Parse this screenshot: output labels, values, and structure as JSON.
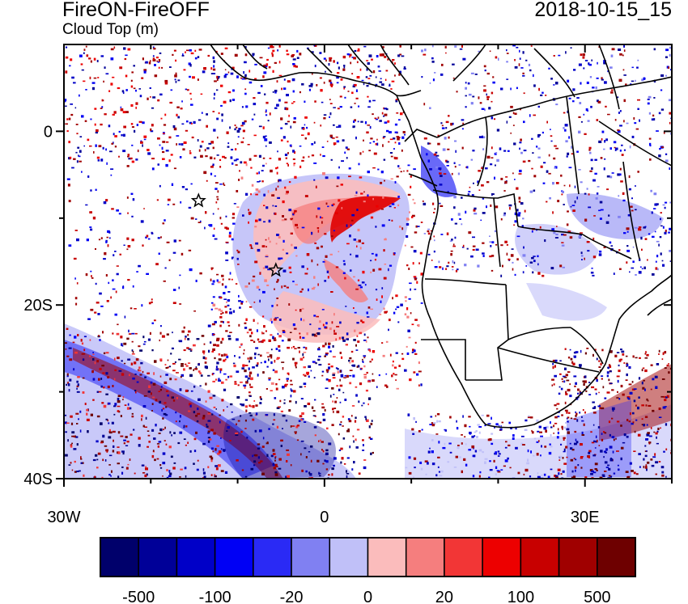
{
  "header": {
    "title": "FireON-FireOFF",
    "subtitle": "Cloud Top (m)",
    "timestamp": "2018-10-15_15"
  },
  "map": {
    "lon_range": [
      -30,
      40
    ],
    "lat_range": [
      -40,
      10
    ],
    "x_ticks": [
      {
        "lon": -30,
        "label": "30W"
      },
      {
        "lon": 0,
        "label": "0"
      },
      {
        "lon": 30,
        "label": "30E"
      }
    ],
    "y_ticks": [
      {
        "lat": 0,
        "label": "0"
      },
      {
        "lat": -20,
        "label": "20S"
      },
      {
        "lat": -40,
        "label": "40S"
      }
    ],
    "markers": [
      {
        "name": "star-marker",
        "lon": -14.5,
        "lat": -8
      },
      {
        "name": "star-marker",
        "lon": -5.6,
        "lat": -16
      }
    ]
  },
  "colorbar": {
    "labels": [
      "-500",
      "-100",
      "-20",
      "0",
      "20",
      "100",
      "500"
    ],
    "colors": [
      "#00006b",
      "#000098",
      "#0000c8",
      "#0000f5",
      "#2a2af5",
      "#8080f2",
      "#c0c0f8",
      "#fbbcbc",
      "#f57e7e",
      "#f23636",
      "#ed0000",
      "#c80000",
      "#a00000",
      "#6e0000"
    ]
  },
  "colors": {
    "land_outline": "#000000",
    "background": "#ffffff"
  }
}
